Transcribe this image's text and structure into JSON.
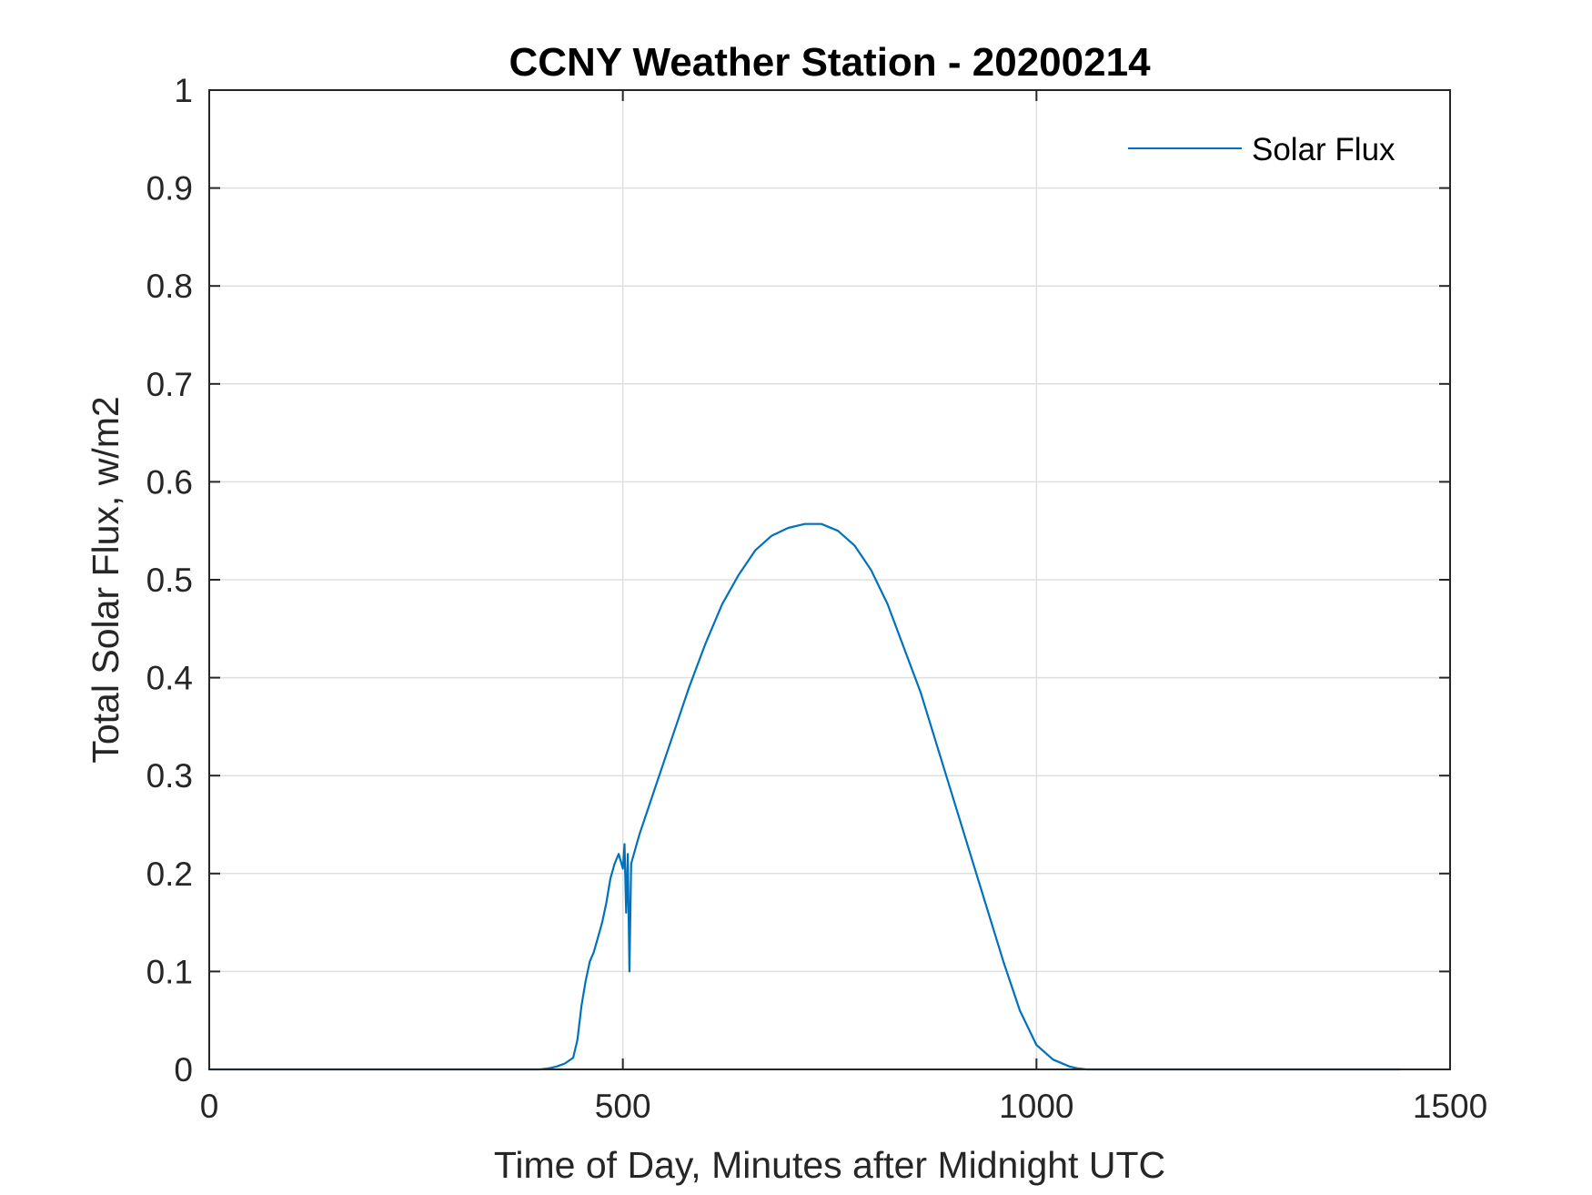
{
  "chart_data": {
    "type": "line",
    "title": "CCNY Weather Station - 20200214",
    "xlabel": "Time of Day, Minutes after Midnight UTC",
    "ylabel": "Total Solar Flux, w/m2",
    "xlim": [
      0,
      1500
    ],
    "ylim": [
      0,
      1
    ],
    "xticks": [
      0,
      500,
      1000,
      1500
    ],
    "xtick_labels": [
      "0",
      "500",
      "1000",
      "1500"
    ],
    "yticks": [
      0,
      0.1,
      0.2,
      0.3,
      0.4,
      0.5,
      0.6,
      0.7,
      0.8,
      0.9,
      1
    ],
    "ytick_labels": [
      "0",
      "0.1",
      "0.2",
      "0.3",
      "0.4",
      "0.5",
      "0.6",
      "0.7",
      "0.8",
      "0.9",
      "1"
    ],
    "grid": true,
    "legend_position": "top-right",
    "colors": {
      "series": "#0072BD",
      "axes": "#262626",
      "grid": "#dfdfdf"
    },
    "series": [
      {
        "name": "Solar Flux",
        "x": [
          0,
          100,
          200,
          300,
          400,
          410,
          420,
          430,
          440,
          445,
          450,
          455,
          460,
          465,
          470,
          475,
          480,
          485,
          490,
          495,
          500,
          502,
          504,
          506,
          508,
          510,
          515,
          520,
          540,
          560,
          580,
          600,
          620,
          640,
          660,
          680,
          700,
          720,
          740,
          760,
          780,
          800,
          820,
          840,
          860,
          880,
          900,
          920,
          940,
          960,
          980,
          1000,
          1020,
          1040,
          1050,
          1060,
          1070,
          1080,
          1100,
          1200,
          1300,
          1440
        ],
        "values": [
          0,
          0,
          0,
          0,
          0,
          0.001,
          0.003,
          0.006,
          0.012,
          0.03,
          0.065,
          0.09,
          0.11,
          0.12,
          0.135,
          0.15,
          0.17,
          0.195,
          0.21,
          0.22,
          0.205,
          0.23,
          0.16,
          0.22,
          0.1,
          0.21,
          0.225,
          0.24,
          0.29,
          0.34,
          0.39,
          0.435,
          0.475,
          0.505,
          0.53,
          0.545,
          0.553,
          0.557,
          0.557,
          0.55,
          0.535,
          0.51,
          0.475,
          0.43,
          0.385,
          0.33,
          0.275,
          0.22,
          0.165,
          0.11,
          0.06,
          0.025,
          0.01,
          0.003,
          0.001,
          0,
          0,
          0,
          0,
          0,
          0,
          0
        ]
      }
    ]
  }
}
